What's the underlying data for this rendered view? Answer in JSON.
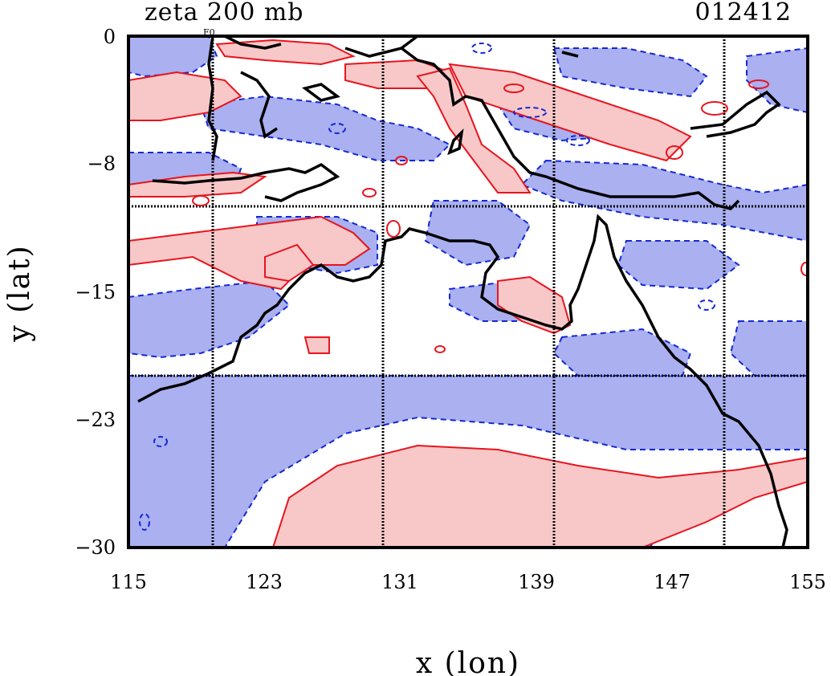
{
  "title": "zeta 200 mb",
  "timestamp": "012412",
  "xlabel": "x (lon)",
  "ylabel": "y (lat)",
  "small_label": "F0",
  "x_ticks": [
    "115",
    "123",
    "131",
    "139",
    "147",
    "155"
  ],
  "y_ticks": [
    "0",
    "−8",
    "−15",
    "−23",
    "−30"
  ],
  "colors": {
    "positive_fill": "#f8c8c8",
    "positive_line": "#e8141e",
    "negative_fill": "#aab0f0",
    "negative_line": "#1428d2",
    "coast": "#000000",
    "grid": "#000000"
  },
  "chart_data": {
    "type": "map",
    "xlim": [
      115,
      155
    ],
    "ylim": [
      -30,
      0
    ],
    "grid_lon": [
      120,
      130,
      140,
      150
    ],
    "grid_lat": [
      -10,
      -20
    ]
  }
}
